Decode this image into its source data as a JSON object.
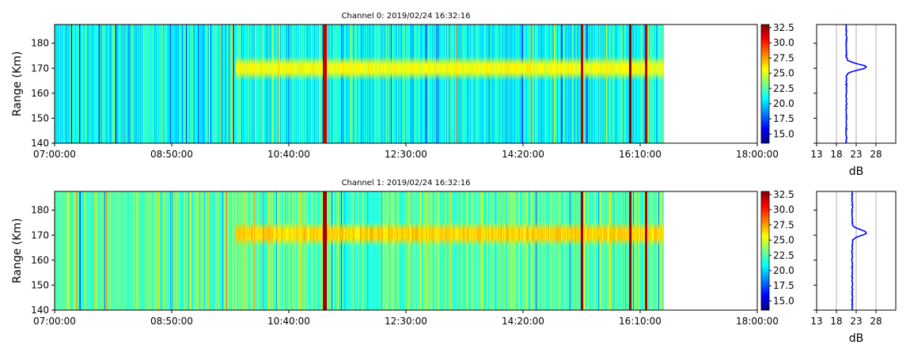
{
  "colors": {
    "colormap": [
      "#00007f",
      "#0000ff",
      "#007fff",
      "#00ffff",
      "#7fff7f",
      "#ffff00",
      "#ff7f00",
      "#ff0000",
      "#7f0000"
    ],
    "profile_line": "#0000ff",
    "grid": "#b0b0b0"
  },
  "chart_data": [
    {
      "type": "heatmap",
      "title": "Channel 0: 2019/02/24 16:32:16",
      "xlabel": "",
      "ylabel": "Range (Km)",
      "x_range": [
        "07:00:00",
        "18:00:00"
      ],
      "x_ticks": [
        "07:00:00",
        "08:50:00",
        "10:40:00",
        "12:30:00",
        "14:20:00",
        "16:10:00",
        "18:00:00"
      ],
      "data_end": "16:32:16",
      "ylim": [
        140,
        187.5
      ],
      "y_ticks": [
        140,
        150,
        160,
        170,
        180
      ],
      "z_range": [
        13.5,
        33
      ],
      "colorbar_ticks": [
        "15.0",
        "17.5",
        "20.0",
        "22.5",
        "25.0",
        "27.5",
        "30.0",
        "32.5"
      ],
      "background_level_db": 21.0,
      "layer": {
        "range_km": 170,
        "width_km": 3,
        "peak_db": 25.5,
        "from": "09:50:00"
      },
      "strong_columns": [
        "11:13:00",
        "11:14:30",
        "15:15:00",
        "16:00:00",
        "16:15:00"
      ],
      "profile": {
        "xlabel": "dB",
        "xlim": [
          13,
          33
        ],
        "x_ticks": [
          13,
          18,
          23,
          28
        ],
        "grid_x": [
          18,
          23,
          28
        ],
        "baseline_db": 20.5,
        "peak_db": 25.5,
        "peak_range_km": 170.5
      }
    },
    {
      "type": "heatmap",
      "title": "Channel 1: 2019/02/24 16:32:16",
      "xlabel": "",
      "ylabel": "Range (Km)",
      "x_range": [
        "07:00:00",
        "18:00:00"
      ],
      "x_ticks": [
        "07:00:00",
        "08:50:00",
        "10:40:00",
        "12:30:00",
        "14:20:00",
        "16:10:00",
        "18:00:00"
      ],
      "data_end": "16:32:16",
      "ylim": [
        140,
        187.5
      ],
      "y_ticks": [
        140,
        150,
        160,
        170,
        180
      ],
      "z_range": [
        13.5,
        33
      ],
      "colorbar_ticks": [
        "15.0",
        "17.5",
        "20.0",
        "22.5",
        "25.0",
        "27.5",
        "30.0",
        "32.5"
      ],
      "background_level_db": 22.5,
      "layer": {
        "range_km": 170.5,
        "width_km": 3,
        "peak_db": 26.5,
        "from": "09:50:00"
      },
      "strong_columns": [
        "11:13:00",
        "11:14:30",
        "15:15:00",
        "16:00:00",
        "16:15:00"
      ],
      "profile": {
        "xlabel": "dB",
        "xlim": [
          13,
          33
        ],
        "x_ticks": [
          13,
          18,
          23,
          28
        ],
        "grid_x": [
          18,
          23,
          28
        ],
        "baseline_db": 22.0,
        "peak_db": 25.5,
        "peak_range_km": 171
      }
    }
  ]
}
